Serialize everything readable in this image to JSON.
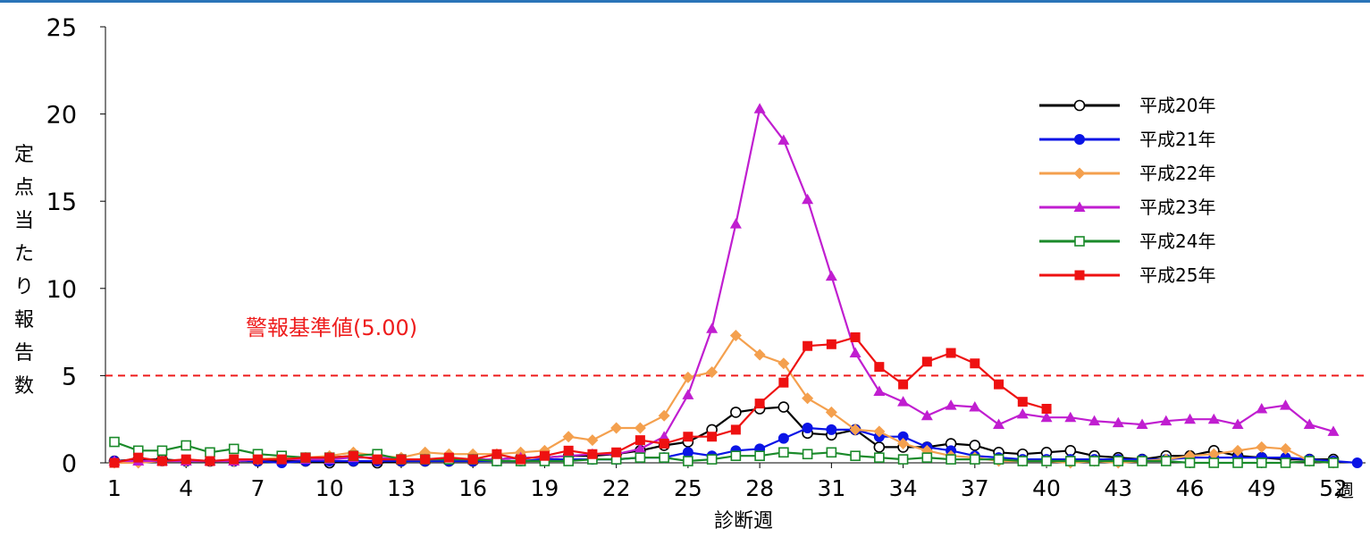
{
  "chart_data": {
    "type": "line",
    "xlabel": "診断週",
    "x_unit": "週",
    "ylabel": "定点当たり報告数",
    "xlim": [
      1,
      52
    ],
    "ylim": [
      0,
      25
    ],
    "x_ticks": [
      "1",
      "4",
      "7",
      "10",
      "13",
      "16",
      "19",
      "22",
      "25",
      "28",
      "31",
      "34",
      "37",
      "40",
      "43",
      "46",
      "49",
      "52"
    ],
    "y_ticks": [
      "0",
      "5",
      "10",
      "15",
      "20",
      "25"
    ],
    "grid": false,
    "legend_position": "top-right",
    "threshold": {
      "value": 5,
      "label": "警報基準値(5.00)",
      "color": "#ee1c1c"
    },
    "series": [
      {
        "name": "平成20年",
        "color": "#000000",
        "marker": "circle-open",
        "values": [
          0.1,
          0.2,
          0.2,
          0.1,
          0.1,
          0.1,
          0.1,
          0.1,
          0.1,
          0.0,
          0.1,
          0.0,
          0.1,
          0.1,
          0.1,
          0.1,
          0.2,
          0.3,
          0.3,
          0.4,
          0.4,
          0.5,
          0.7,
          1.0,
          1.2,
          1.9,
          2.9,
          3.1,
          3.2,
          1.7,
          1.6,
          1.9,
          0.9,
          0.9,
          0.9,
          1.1,
          1.0,
          0.6,
          0.5,
          0.6,
          0.7,
          0.4,
          0.3,
          0.2,
          0.4,
          0.4,
          0.7,
          0.4,
          0.3,
          0.2,
          0.2,
          0.2
        ]
      },
      {
        "name": "平成21年",
        "color": "#0a14e6",
        "marker": "circle-filled",
        "values": [
          0.1,
          0.1,
          0.1,
          0.1,
          0.1,
          0.1,
          0.1,
          0.0,
          0.1,
          0.1,
          0.1,
          0.1,
          0.1,
          0.1,
          0.1,
          0.1,
          0.1,
          0.1,
          0.2,
          0.2,
          0.2,
          0.2,
          0.3,
          0.3,
          0.6,
          0.4,
          0.7,
          0.8,
          1.4,
          2.0,
          1.9,
          1.9,
          1.5,
          1.5,
          0.9,
          0.7,
          0.4,
          0.3,
          0.2,
          0.2,
          0.2,
          0.2,
          0.2,
          0.2,
          0.2,
          0.3,
          0.3,
          0.3,
          0.3,
          0.3,
          0.2,
          0.1,
          0.0
        ]
      },
      {
        "name": "平成22年",
        "color": "#f4a04e",
        "marker": "diamond",
        "values": [
          0.0,
          0.0,
          0.1,
          0.1,
          0.1,
          0.1,
          0.2,
          0.3,
          0.3,
          0.4,
          0.6,
          0.4,
          0.3,
          0.6,
          0.5,
          0.5,
          0.5,
          0.6,
          0.7,
          1.5,
          1.3,
          2.0,
          2.0,
          2.7,
          4.9,
          5.2,
          7.3,
          6.2,
          5.7,
          3.7,
          2.9,
          1.9,
          1.8,
          1.1,
          0.7,
          0.4,
          0.3,
          0.1,
          0.1,
          0.1,
          0.0,
          0.1,
          0.0,
          0.1,
          0.2,
          0.4,
          0.5,
          0.7,
          0.9,
          0.8,
          0.1,
          0.0
        ]
      },
      {
        "name": "平成23年",
        "color": "#c01ed0",
        "marker": "triangle",
        "values": [
          0.1,
          0.1,
          0.1,
          0.1,
          0.1,
          0.1,
          0.2,
          0.2,
          0.2,
          0.2,
          0.3,
          0.3,
          0.2,
          0.2,
          0.2,
          0.2,
          0.2,
          0.3,
          0.3,
          0.4,
          0.5,
          0.5,
          0.8,
          1.5,
          3.9,
          7.7,
          13.7,
          20.3,
          18.5,
          15.1,
          10.7,
          6.3,
          4.1,
          3.5,
          2.7,
          3.3,
          3.2,
          2.2,
          2.8,
          2.6,
          2.6,
          2.4,
          2.3,
          2.2,
          2.4,
          2.5,
          2.5,
          2.2,
          3.1,
          3.3,
          2.2,
          1.8
        ]
      },
      {
        "name": "平成24年",
        "color": "#1a8a2a",
        "marker": "square-open",
        "values": [
          1.2,
          0.7,
          0.7,
          1.0,
          0.6,
          0.8,
          0.5,
          0.4,
          0.3,
          0.3,
          0.4,
          0.5,
          0.2,
          0.2,
          0.2,
          0.2,
          0.1,
          0.1,
          0.1,
          0.1,
          0.2,
          0.2,
          0.3,
          0.3,
          0.1,
          0.2,
          0.4,
          0.4,
          0.6,
          0.5,
          0.6,
          0.4,
          0.3,
          0.2,
          0.3,
          0.2,
          0.2,
          0.2,
          0.1,
          0.1,
          0.1,
          0.1,
          0.1,
          0.1,
          0.1,
          0.0,
          0.0,
          0.0,
          0.0,
          0.0,
          0.1,
          0.0
        ]
      },
      {
        "name": "平成25年",
        "color": "#ee1111",
        "marker": "square-filled",
        "values": [
          0.0,
          0.3,
          0.1,
          0.2,
          0.1,
          0.2,
          0.2,
          0.2,
          0.3,
          0.3,
          0.4,
          0.2,
          0.2,
          0.2,
          0.3,
          0.2,
          0.5,
          0.2,
          0.4,
          0.7,
          0.5,
          0.6,
          1.3,
          1.1,
          1.5,
          1.5,
          1.9,
          3.4,
          4.6,
          6.7,
          6.8,
          7.2,
          5.5,
          4.5,
          5.8,
          6.3,
          5.7,
          4.5,
          3.5,
          3.1
        ]
      }
    ]
  }
}
